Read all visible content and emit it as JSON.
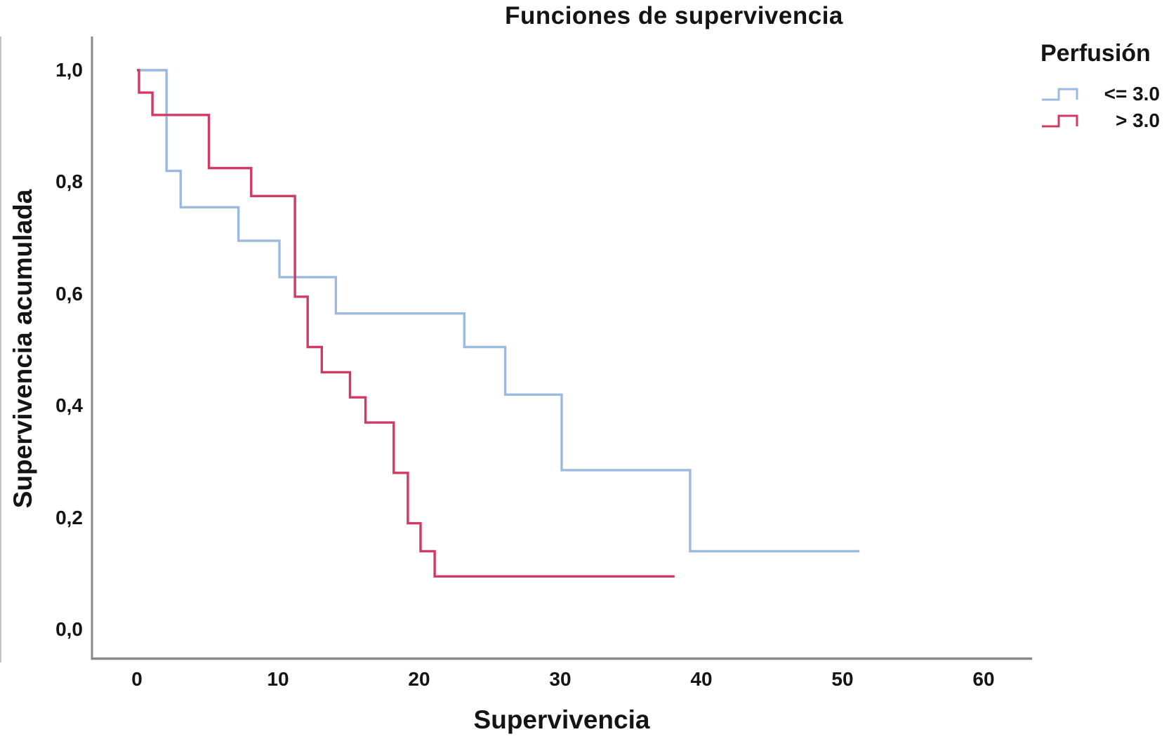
{
  "title": "Funciones de supervivencia",
  "legend": {
    "title": "Perfusión",
    "items": [
      {
        "label": "<= 3.0",
        "color": "#9cb9e0"
      },
      {
        "label": "> 3.0",
        "color": "#d23a64"
      }
    ]
  },
  "axes": {
    "x_title": "Supervivencia",
    "y_title": "Supervivencia acumulada",
    "axis_color": "#8a8a8a",
    "text_color": "#141414",
    "x_ticks": [
      {
        "label": "0",
        "value": 0
      },
      {
        "label": "10",
        "value": 10
      },
      {
        "label": "20",
        "value": 20
      },
      {
        "label": "30",
        "value": 30
      },
      {
        "label": "40",
        "value": 40
      },
      {
        "label": "50",
        "value": 50
      },
      {
        "label": "60",
        "value": 60
      }
    ],
    "y_ticks": [
      {
        "label": "1,0",
        "value": 1.0
      },
      {
        "label": "0,8",
        "value": 0.8
      },
      {
        "label": "0,6",
        "value": 0.6
      },
      {
        "label": "0,4",
        "value": 0.4
      },
      {
        "label": "0,2",
        "value": 0.2
      },
      {
        "label": "0,0",
        "value": 0.0
      }
    ]
  },
  "chart_data": {
    "type": "line",
    "subtype": "kaplan-meier-step",
    "title": "Funciones de supervivencia",
    "xlabel": "Supervivencia",
    "ylabel": "Supervivencia acumulada",
    "xlim": [
      0,
      63
    ],
    "ylim": [
      0.0,
      1.0
    ],
    "grid": false,
    "legend_title": "Perfusión",
    "legend_position": "top-right",
    "series": [
      {
        "name": "<= 3.0",
        "color": "#9cb9e0",
        "steps": [
          [
            0,
            1.0
          ],
          [
            2.1,
            0.82
          ],
          [
            3.1,
            0.755
          ],
          [
            7.2,
            0.695
          ],
          [
            10.1,
            0.63
          ],
          [
            14.1,
            0.565
          ],
          [
            23.2,
            0.505
          ],
          [
            26.1,
            0.42
          ],
          [
            30.1,
            0.285
          ],
          [
            39.2,
            0.14
          ]
        ],
        "end_t": 51.2
      },
      {
        "name": "> 3.0",
        "color": "#d23a64",
        "steps": [
          [
            0,
            1.0
          ],
          [
            0.15,
            0.96
          ],
          [
            1.1,
            0.92
          ],
          [
            5.1,
            0.825
          ],
          [
            8.1,
            0.775
          ],
          [
            11.2,
            0.595
          ],
          [
            12.1,
            0.505
          ],
          [
            13.1,
            0.46
          ],
          [
            15.1,
            0.415
          ],
          [
            16.2,
            0.37
          ],
          [
            18.2,
            0.28
          ],
          [
            19.2,
            0.19
          ],
          [
            20.1,
            0.14
          ],
          [
            21.1,
            0.095
          ]
        ],
        "end_t": 38.1
      }
    ]
  }
}
